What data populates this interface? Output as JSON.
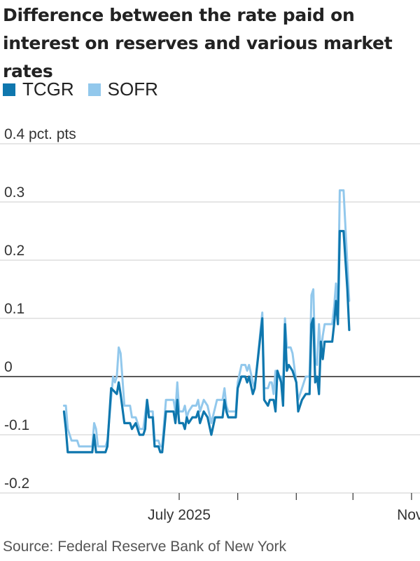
{
  "title": "Difference between the rate paid on interest on reserves and various market rates",
  "source": "Source: Federal Reserve Bank of New York",
  "legend": [
    {
      "name": "TCGR",
      "color": "#0f77ae"
    },
    {
      "name": "SOFR",
      "color": "#92c8ec"
    }
  ],
  "chart_data": {
    "type": "line",
    "ylim": [
      -0.2,
      0.4
    ],
    "xlim": [
      "2025-04-09",
      "2025-11-04"
    ],
    "y_ticks": [
      {
        "value": 0.4,
        "label": "0.4 pct. pts"
      },
      {
        "value": 0.3,
        "label": "0.3"
      },
      {
        "value": 0.2,
        "label": "0.2"
      },
      {
        "value": 0.1,
        "label": "0.1"
      },
      {
        "value": 0,
        "label": "0"
      },
      {
        "value": -0.1,
        "label": "-0.1"
      },
      {
        "value": -0.2,
        "label": "-0.2"
      }
    ],
    "x_ticks": [
      {
        "date": "2025-07-01",
        "label": "July 2025"
      },
      {
        "date": "2025-08-01",
        "label": ""
      },
      {
        "date": "2025-09-01",
        "label": ""
      },
      {
        "date": "2025-10-01",
        "label": ""
      },
      {
        "date": "2025-11-01",
        "label": "Nov."
      }
    ],
    "grid": true,
    "series": [
      {
        "name": "SOFR",
        "color": "#92c8ec",
        "points": [
          [
            "2025-05-01",
            -0.05
          ],
          [
            "2025-05-02",
            -0.05
          ],
          [
            "2025-05-03",
            -0.09
          ],
          [
            "2025-05-05",
            -0.11
          ],
          [
            "2025-05-08",
            -0.11
          ],
          [
            "2025-05-09",
            -0.12
          ],
          [
            "2025-05-16",
            -0.12
          ],
          [
            "2025-05-17",
            -0.08
          ],
          [
            "2025-05-18",
            -0.09
          ],
          [
            "2025-05-19",
            -0.12
          ],
          [
            "2025-05-23",
            -0.12
          ],
          [
            "2025-05-24",
            -0.11
          ],
          [
            "2025-05-27",
            0.0
          ],
          [
            "2025-05-28",
            -0.01
          ],
          [
            "2025-05-29",
            0.0
          ],
          [
            "2025-05-30",
            0.05
          ],
          [
            "2025-05-31",
            0.04
          ],
          [
            "2025-06-02",
            -0.05
          ],
          [
            "2025-06-05",
            -0.05
          ],
          [
            "2025-06-06",
            -0.07
          ],
          [
            "2025-06-08",
            -0.07
          ],
          [
            "2025-06-10",
            -0.09
          ],
          [
            "2025-06-12",
            -0.09
          ],
          [
            "2025-06-14",
            -0.04
          ],
          [
            "2025-06-15",
            -0.06
          ],
          [
            "2025-06-17",
            -0.06
          ],
          [
            "2025-06-18",
            -0.11
          ],
          [
            "2025-06-20",
            -0.11
          ],
          [
            "2025-06-21",
            -0.12
          ],
          [
            "2025-06-22",
            -0.12
          ],
          [
            "2025-06-24",
            -0.04
          ],
          [
            "2025-06-28",
            -0.04
          ],
          [
            "2025-06-29",
            -0.06
          ],
          [
            "2025-06-30",
            -0.01
          ],
          [
            "2025-07-01",
            -0.06
          ],
          [
            "2025-07-03",
            -0.06
          ],
          [
            "2025-07-04",
            -0.05
          ],
          [
            "2025-07-05",
            -0.07
          ],
          [
            "2025-07-06",
            -0.06
          ],
          [
            "2025-07-08",
            -0.05
          ],
          [
            "2025-07-10",
            -0.05
          ],
          [
            "2025-07-11",
            -0.04
          ],
          [
            "2025-07-12",
            -0.06
          ],
          [
            "2025-07-14",
            -0.04
          ],
          [
            "2025-07-16",
            -0.05
          ],
          [
            "2025-07-18",
            -0.08
          ],
          [
            "2025-07-21",
            -0.04
          ],
          [
            "2025-07-24",
            -0.04
          ],
          [
            "2025-07-25",
            -0.02
          ],
          [
            "2025-07-26",
            -0.05
          ],
          [
            "2025-07-27",
            -0.06
          ],
          [
            "2025-07-31",
            -0.06
          ],
          [
            "2025-08-01",
            -0.01
          ],
          [
            "2025-08-03",
            0.02
          ],
          [
            "2025-08-05",
            0.02
          ],
          [
            "2025-08-06",
            0.01
          ],
          [
            "2025-08-07",
            0.02
          ],
          [
            "2025-08-09",
            -0.01
          ],
          [
            "2025-08-10",
            -0.02
          ],
          [
            "2025-08-14",
            0.11
          ],
          [
            "2025-08-15",
            -0.02
          ],
          [
            "2025-08-17",
            -0.02
          ],
          [
            "2025-08-18",
            -0.01
          ],
          [
            "2025-08-19",
            -0.01
          ],
          [
            "2025-08-20",
            -0.03
          ],
          [
            "2025-08-21",
            0.01
          ],
          [
            "2025-08-22",
            0.0
          ],
          [
            "2025-08-24",
            0.0
          ],
          [
            "2025-08-25",
            -0.01
          ],
          [
            "2025-08-26",
            0.1
          ],
          [
            "2025-08-27",
            0.05
          ],
          [
            "2025-08-29",
            0.05
          ],
          [
            "2025-08-30",
            0.04
          ],
          [
            "2025-09-01",
            -0.01
          ],
          [
            "2025-09-02",
            -0.04
          ],
          [
            "2025-09-04",
            -0.02
          ],
          [
            "2025-09-06",
            0.0
          ],
          [
            "2025-09-08",
            0.0
          ],
          [
            "2025-09-09",
            0.14
          ],
          [
            "2025-09-10",
            0.15
          ],
          [
            "2025-09-11",
            0.03
          ],
          [
            "2025-09-12",
            0.02
          ],
          [
            "2025-09-13",
            0.09
          ],
          [
            "2025-09-14",
            0.04
          ],
          [
            "2025-09-15",
            0.07
          ],
          [
            "2025-09-16",
            0.09
          ],
          [
            "2025-09-20",
            0.09
          ],
          [
            "2025-09-21",
            0.12
          ],
          [
            "2025-09-22",
            0.16
          ],
          [
            "2025-09-23",
            0.11
          ],
          [
            "2025-09-24",
            0.32
          ],
          [
            "2025-09-26",
            0.32
          ],
          [
            "2025-09-29",
            0.13
          ]
        ]
      },
      {
        "name": "TCGR",
        "color": "#0f77ae",
        "points": [
          [
            "2025-05-01",
            -0.06
          ],
          [
            "2025-05-02",
            -0.09
          ],
          [
            "2025-05-03",
            -0.13
          ],
          [
            "2025-05-16",
            -0.13
          ],
          [
            "2025-05-17",
            -0.1
          ],
          [
            "2025-05-18",
            -0.13
          ],
          [
            "2025-05-23",
            -0.13
          ],
          [
            "2025-05-24",
            -0.12
          ],
          [
            "2025-05-26",
            -0.02
          ],
          [
            "2025-05-29",
            -0.03
          ],
          [
            "2025-05-30",
            -0.01
          ],
          [
            "2025-05-31",
            -0.03
          ],
          [
            "2025-06-02",
            -0.08
          ],
          [
            "2025-06-05",
            -0.08
          ],
          [
            "2025-06-06",
            -0.09
          ],
          [
            "2025-06-08",
            -0.08
          ],
          [
            "2025-06-10",
            -0.1
          ],
          [
            "2025-06-12",
            -0.1
          ],
          [
            "2025-06-13",
            -0.09
          ],
          [
            "2025-06-14",
            -0.04
          ],
          [
            "2025-06-15",
            -0.07
          ],
          [
            "2025-06-17",
            -0.07
          ],
          [
            "2025-06-18",
            -0.12
          ],
          [
            "2025-06-20",
            -0.12
          ],
          [
            "2025-06-21",
            -0.13
          ],
          [
            "2025-06-22",
            -0.13
          ],
          [
            "2025-06-24",
            -0.06
          ],
          [
            "2025-06-28",
            -0.06
          ],
          [
            "2025-06-29",
            -0.08
          ],
          [
            "2025-06-30",
            -0.04
          ],
          [
            "2025-07-01",
            -0.08
          ],
          [
            "2025-07-03",
            -0.08
          ],
          [
            "2025-07-04",
            -0.09
          ],
          [
            "2025-07-05",
            -0.07
          ],
          [
            "2025-07-06",
            -0.08
          ],
          [
            "2025-07-08",
            -0.07
          ],
          [
            "2025-07-10",
            -0.07
          ],
          [
            "2025-07-11",
            -0.06
          ],
          [
            "2025-07-12",
            -0.08
          ],
          [
            "2025-07-14",
            -0.06
          ],
          [
            "2025-07-16",
            -0.07
          ],
          [
            "2025-07-18",
            -0.1
          ],
          [
            "2025-07-20",
            -0.07
          ],
          [
            "2025-07-24",
            -0.07
          ],
          [
            "2025-07-25",
            -0.04
          ],
          [
            "2025-07-26",
            -0.06
          ],
          [
            "2025-07-27",
            -0.07
          ],
          [
            "2025-07-31",
            -0.07
          ],
          [
            "2025-08-01",
            -0.02
          ],
          [
            "2025-08-03",
            0.0
          ],
          [
            "2025-08-05",
            0.0
          ],
          [
            "2025-08-06",
            -0.01
          ],
          [
            "2025-08-07",
            0.0
          ],
          [
            "2025-08-09",
            -0.03
          ],
          [
            "2025-08-10",
            -0.02
          ],
          [
            "2025-08-14",
            0.1
          ],
          [
            "2025-08-15",
            -0.04
          ],
          [
            "2025-08-17",
            -0.05
          ],
          [
            "2025-08-18",
            -0.04
          ],
          [
            "2025-08-20",
            -0.04
          ],
          [
            "2025-08-21",
            -0.06
          ],
          [
            "2025-08-22",
            0.01
          ],
          [
            "2025-08-24",
            -0.01
          ],
          [
            "2025-08-25",
            -0.05
          ],
          [
            "2025-08-26",
            0.09
          ],
          [
            "2025-08-27",
            0.01
          ],
          [
            "2025-08-28",
            0.02
          ],
          [
            "2025-08-30",
            0.01
          ],
          [
            "2025-09-01",
            -0.01
          ],
          [
            "2025-09-02",
            -0.06
          ],
          [
            "2025-09-04",
            -0.04
          ],
          [
            "2025-09-06",
            -0.03
          ],
          [
            "2025-09-08",
            -0.03
          ],
          [
            "2025-09-09",
            0.09
          ],
          [
            "2025-09-10",
            0.1
          ],
          [
            "2025-09-11",
            -0.01
          ],
          [
            "2025-09-12",
            0.0
          ],
          [
            "2025-09-13",
            -0.03
          ],
          [
            "2025-09-14",
            0.06
          ],
          [
            "2025-09-15",
            0.03
          ],
          [
            "2025-09-16",
            0.06
          ],
          [
            "2025-09-20",
            0.06
          ],
          [
            "2025-09-21",
            0.09
          ],
          [
            "2025-09-22",
            0.13
          ],
          [
            "2025-09-23",
            0.09
          ],
          [
            "2025-09-24",
            0.25
          ],
          [
            "2025-09-26",
            0.25
          ],
          [
            "2025-09-28",
            0.15
          ],
          [
            "2025-09-29",
            0.08
          ]
        ]
      }
    ]
  }
}
